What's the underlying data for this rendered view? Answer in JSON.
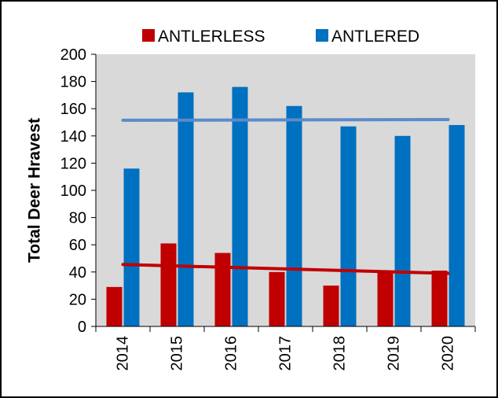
{
  "chart_data": {
    "type": "bar",
    "title": "",
    "xlabel": "",
    "ylabel": "Total Deer Hravest",
    "categories": [
      "2014",
      "2015",
      "2016",
      "2017",
      "2018",
      "2019",
      "2020"
    ],
    "series": [
      {
        "name": "ANTLERLESS",
        "color": "#C00000",
        "values": [
          29,
          61,
          54,
          40,
          30,
          41,
          41
        ]
      },
      {
        "name": "ANTLERED",
        "color": "#0070C0",
        "values": [
          116,
          172,
          176,
          162,
          147,
          140,
          148
        ]
      }
    ],
    "trendlines": [
      {
        "series": "ANTLERLESS",
        "color": "#C00000",
        "start": 45.5,
        "end": 39
      },
      {
        "series": "ANTLERED",
        "color": "#5B8BC9",
        "start": 151.5,
        "end": 152
      }
    ],
    "ylim": [
      0,
      200
    ],
    "yticks": [
      0,
      20,
      40,
      60,
      80,
      100,
      120,
      140,
      160,
      180,
      200
    ],
    "plot_background": "#D9D9D9",
    "legend": "top"
  }
}
